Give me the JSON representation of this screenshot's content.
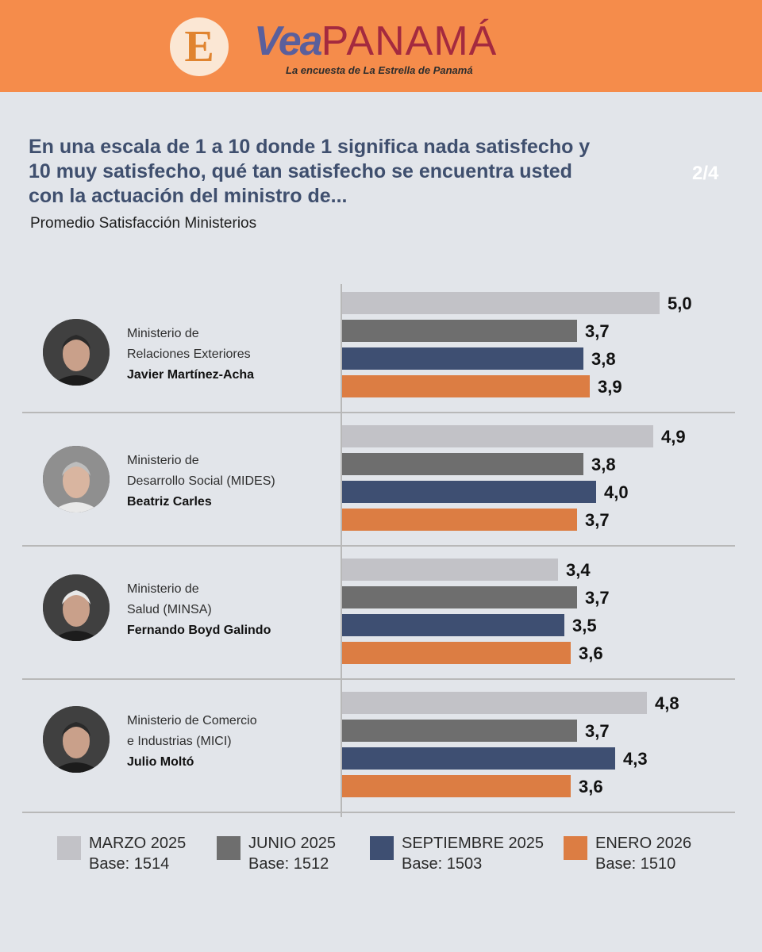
{
  "header": {
    "logo_letter": "E",
    "brand_a": "Vea",
    "brand_b": "PANAMÁ",
    "tagline": "La encuesta de La Estrella de Panamá"
  },
  "title": "En una escala de 1 a 10 donde 1 significa nada satisfecho y 10 muy satisfecho, qué tan satisfecho se encuentra usted con la actuación del ministro de...",
  "subtitle": "Promedio Satisfacción Ministerios",
  "page_indicator": "2/4",
  "ministers": [
    {
      "line1": "Ministerio de",
      "line2": "Relaciones Exteriores",
      "name": "Javier Martínez-Acha",
      "photo": "portrait-photo"
    },
    {
      "line1": "Ministerio de",
      "line2": "Desarrollo Social (MIDES)",
      "name": "Beatriz Carles",
      "photo": "portrait-photo"
    },
    {
      "line1": "Ministerio de",
      "line2": "Salud (MINSA)",
      "name": "Fernando Boyd Galindo",
      "photo": "portrait-photo"
    },
    {
      "line1": "Ministerio de Comercio",
      "line2": "e Industrias (MICI)",
      "name": "Julio Moltó",
      "photo": "portrait-photo"
    }
  ],
  "legend": [
    {
      "label": "MARZO 2025",
      "base": "Base: 1514"
    },
    {
      "label": "JUNIO 2025",
      "base": "Base: 1512"
    },
    {
      "label": "SEPTIEMBRE 2025",
      "base": "Base: 1503"
    },
    {
      "label": "ENERO 2026",
      "base": "Base: 1510"
    }
  ],
  "chart_data": {
    "type": "bar",
    "orientation": "horizontal",
    "categories": [
      "Javier Martínez-Acha",
      "Beatriz Carles",
      "Fernando Boyd Galindo",
      "Julio Moltó"
    ],
    "series": [
      {
        "name": "MARZO 2025",
        "color": "#c2c2c7",
        "values": [
          5.0,
          4.9,
          3.4,
          4.8
        ],
        "labels": [
          "5,0",
          "4,9",
          "3,4",
          "4,8"
        ]
      },
      {
        "name": "JUNIO 2025",
        "color": "#6e6e6e",
        "values": [
          3.7,
          3.8,
          3.7,
          3.7
        ],
        "labels": [
          "3,7",
          "3,8",
          "3,7",
          "3,7"
        ]
      },
      {
        "name": "SEPTIEMBRE 2025",
        "color": "#3e4f72",
        "values": [
          3.8,
          4.0,
          3.5,
          4.3
        ],
        "labels": [
          "3,8",
          "4,0",
          "3,5",
          "4,3"
        ]
      },
      {
        "name": "ENERO 2026",
        "color": "#dc7d43",
        "values": [
          3.9,
          3.7,
          3.6,
          3.6
        ],
        "labels": [
          "3,9",
          "3,7",
          "3,6",
          "3,6"
        ]
      }
    ],
    "xlim": [
      0,
      5
    ],
    "grid": false,
    "legend_position": "bottom"
  }
}
